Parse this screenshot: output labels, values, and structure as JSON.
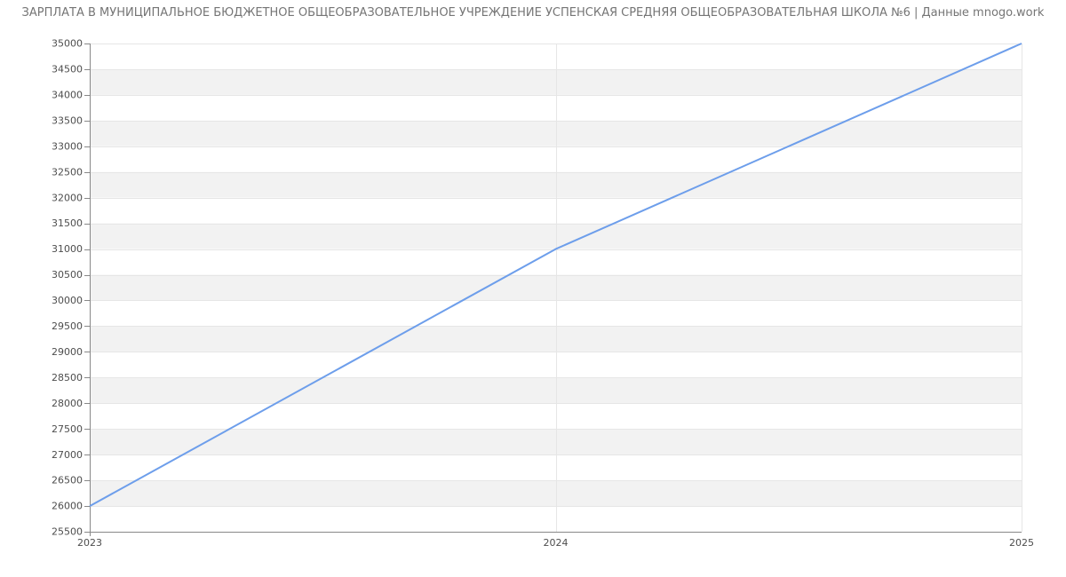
{
  "title": "ЗАРПЛАТА В МУНИЦИПАЛЬНОЕ БЮДЖЕТНОЕ ОБЩЕОБРАЗОВАТЕЛЬНОЕ УЧРЕЖДЕНИЕ УСПЕНСКАЯ СРЕДНЯЯ ОБЩЕОБРАЗОВАТЕЛЬНАЯ ШКОЛА №6 | Данные mnogo.work",
  "chart_data": {
    "type": "line",
    "x": [
      "2023",
      "2024",
      "2025"
    ],
    "values": [
      26000,
      31000,
      35000
    ],
    "title": "ЗАРПЛАТА В МУНИЦИПАЛЬНОЕ БЮДЖЕТНОЕ ОБЩЕОБРАЗОВАТЕЛЬНОЕ УЧРЕЖДЕНИЕ УСПЕНСКАЯ СРЕДНЯЯ ОБЩЕОБРАЗОВАТЕЛЬНАЯ ШКОЛА №6 | Данные mnogo.work",
    "xlabel": "",
    "ylabel": "",
    "ylim": [
      25500,
      35000
    ],
    "ytick_step": 500,
    "yticklabels": [
      "25500",
      "26000",
      "26500",
      "27000",
      "27500",
      "28000",
      "28500",
      "29000",
      "29500",
      "30000",
      "30500",
      "31000",
      "31500",
      "32000",
      "32500",
      "33000",
      "33500",
      "34000",
      "34500",
      "35000"
    ],
    "grid": true,
    "legend": "none",
    "band_fill_alternating": true
  },
  "colors": {
    "line": "#6d9eeb",
    "band_gray": "#f2f2f2",
    "band_white": "#ffffff",
    "gridline": "#e6e6e6",
    "axis": "#888888",
    "tick_label": "#4d4d4d",
    "title_text": "#757575",
    "background": "#ffffff"
  }
}
